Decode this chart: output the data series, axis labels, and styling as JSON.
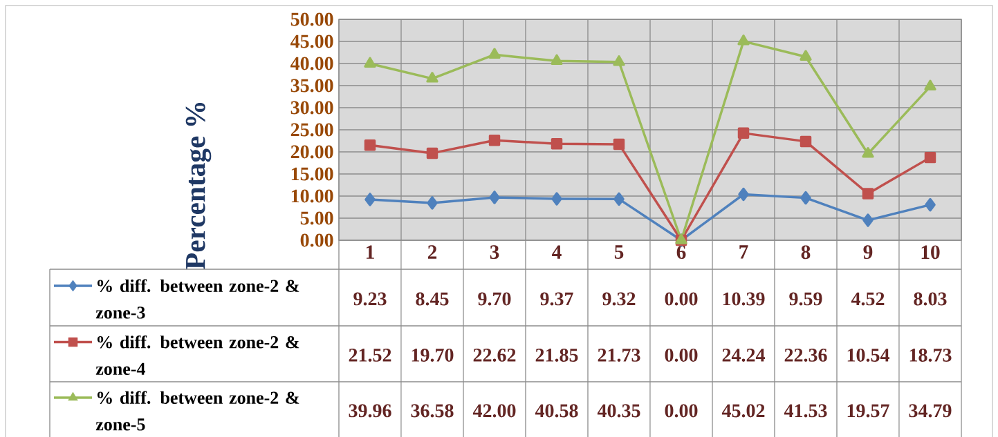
{
  "chart_data": {
    "type": "line",
    "ylabel": "Percentage %",
    "categories": [
      "1",
      "2",
      "3",
      "4",
      "5",
      "6",
      "7",
      "8",
      "9",
      "10"
    ],
    "ylim": [
      0,
      50
    ],
    "yticks": [
      {
        "value": 0,
        "label": "0.00"
      },
      {
        "value": 5,
        "label": "5.00"
      },
      {
        "value": 10,
        "label": "10.00"
      },
      {
        "value": 15,
        "label": "15.00"
      },
      {
        "value": 20,
        "label": "20.00"
      },
      {
        "value": 25,
        "label": "25.00"
      },
      {
        "value": 30,
        "label": "30.00"
      },
      {
        "value": 35,
        "label": "35.00"
      },
      {
        "value": 40,
        "label": "40.00"
      },
      {
        "value": 45,
        "label": "45.00"
      },
      {
        "value": 50,
        "label": "50.00"
      }
    ],
    "grid": true,
    "legend": "bottom",
    "series": [
      {
        "name": "% diff. between zone-2 & zone-3",
        "color": "#4f81bd",
        "marker": "diamond",
        "values": [
          9.23,
          8.45,
          9.7,
          9.37,
          9.32,
          0.0,
          10.39,
          9.59,
          4.52,
          8.03
        ],
        "value_labels": [
          "9.23",
          "8.45",
          "9.70",
          "9.37",
          "9.32",
          "0.00",
          "10.39",
          "9.59",
          "4.52",
          "8.03"
        ]
      },
      {
        "name": "% diff. between zone-2 & zone-4",
        "color": "#c0504d",
        "marker": "square",
        "values": [
          21.52,
          19.7,
          22.62,
          21.85,
          21.73,
          0.0,
          24.24,
          22.36,
          10.54,
          18.73
        ],
        "value_labels": [
          "21.52",
          "19.70",
          "22.62",
          "21.85",
          "21.73",
          "0.00",
          "24.24",
          "22.36",
          "10.54",
          "18.73"
        ]
      },
      {
        "name": "% diff. between zone-2 & zone-5",
        "color": "#9bbb59",
        "marker": "triangle",
        "values": [
          39.96,
          36.58,
          42.0,
          40.58,
          40.35,
          0.0,
          45.02,
          41.53,
          19.57,
          34.79
        ],
        "value_labels": [
          "39.96",
          "36.58",
          "42.00",
          "40.58",
          "40.35",
          "0.00",
          "45.02",
          "41.53",
          "19.57",
          "34.79"
        ]
      }
    ]
  }
}
